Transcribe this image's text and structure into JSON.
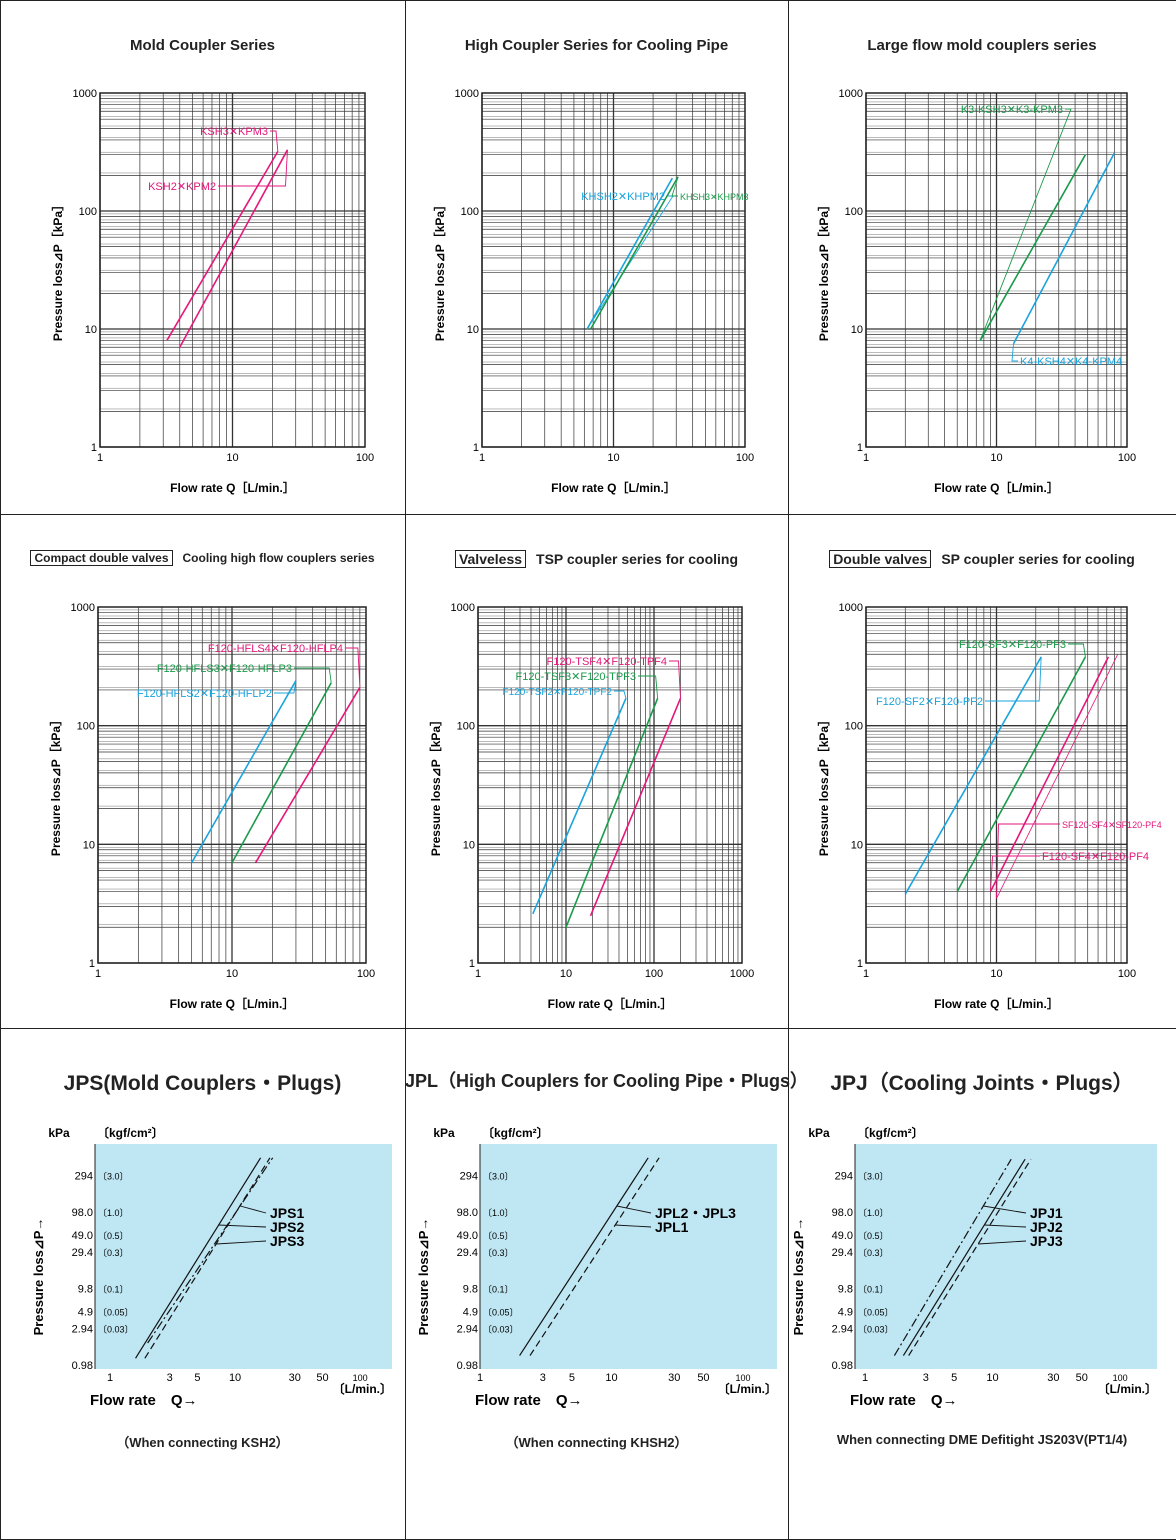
{
  "colors": {
    "pink": "#e5177b",
    "cyan": "#1aa3dd",
    "green": "#1a9a4a",
    "lightblue": "#bfe6f3"
  },
  "chart_data": [
    {
      "type": "line",
      "scale": "log-log",
      "title": "Mold Coupler Series",
      "xlabel": "Flow rate Q［L/min.］",
      "ylabel": "Pressure loss⊿P［kPa］",
      "xlim": [
        1,
        100
      ],
      "ylim": [
        1,
        1000
      ],
      "xticks": [
        "1",
        "10",
        "100"
      ],
      "yticks": [
        "1",
        "10",
        "100",
        "1000"
      ],
      "series": [
        {
          "name": "KSH3✕KPM3",
          "color": "pink",
          "points": [
            [
              3.2,
              8
            ],
            [
              22,
              320
            ]
          ]
        },
        {
          "name": "KSH2✕KPM2",
          "color": "pink",
          "points": [
            [
              4,
              7
            ],
            [
              26,
              330
            ]
          ]
        }
      ]
    },
    {
      "type": "line",
      "scale": "log-log",
      "title": "High Coupler Series for Cooling Pipe",
      "xlabel": "Flow rate Q［L/min.］",
      "ylabel": "Pressure loss⊿P［kPa］",
      "xlim": [
        1,
        100
      ],
      "ylim": [
        1,
        1000
      ],
      "xticks": [
        "1",
        "10",
        "100"
      ],
      "yticks": [
        "1",
        "10",
        "100",
        "1000"
      ],
      "series": [
        {
          "name": "KHSH2✕KHPM2",
          "color": "cyan",
          "points": [
            [
              6.3,
              10
            ],
            [
              28,
              190
            ]
          ]
        },
        {
          "name": "KHSH3✕KHPM3",
          "color": "green",
          "points": [
            [
              6.7,
              10
            ],
            [
              31,
              195
            ]
          ]
        }
      ]
    },
    {
      "type": "line",
      "scale": "log-log",
      "title": "Large flow mold couplers series",
      "xlabel": "Flow rate Q［L/min.］",
      "ylabel": "Pressure loss⊿P［kPa］",
      "xlim": [
        1,
        100
      ],
      "ylim": [
        1,
        1000
      ],
      "xticks": [
        "1",
        "10",
        "100"
      ],
      "yticks": [
        "1",
        "10",
        "100",
        "1000"
      ],
      "series": [
        {
          "name": "K3-KSH3✕K3-KPM3",
          "color": "green",
          "points": [
            [
              7.5,
              8
            ],
            [
              48,
              300
            ]
          ]
        },
        {
          "name": "K4-KSH4✕K4-KPM4",
          "color": "cyan",
          "points": [
            [
              13.5,
              7.5
            ],
            [
              80,
              310
            ]
          ]
        }
      ]
    },
    {
      "type": "line",
      "scale": "log-log",
      "badge": "Compact double valves",
      "title": "Cooling high flow couplers series",
      "xlabel": "Flow rate Q［L/min.］",
      "ylabel": "Pressure loss⊿P［kPa］",
      "xlim": [
        1,
        100
      ],
      "ylim": [
        1,
        1000
      ],
      "xticks": [
        "1",
        "10",
        "100"
      ],
      "yticks": [
        "1",
        "10",
        "100",
        "1000"
      ],
      "series": [
        {
          "name": "F120-HFLS4✕F120-HFLP4",
          "color": "pink",
          "points": [
            [
              15,
              7
            ],
            [
              90,
              210
            ]
          ]
        },
        {
          "name": "F120-HFLS3✕F120-HFLP3",
          "color": "green",
          "points": [
            [
              10,
              7
            ],
            [
              55,
              230
            ]
          ]
        },
        {
          "name": "F120-HFLS2✕F120-HFLP2",
          "color": "cyan",
          "points": [
            [
              5,
              7
            ],
            [
              30,
              240
            ]
          ]
        }
      ]
    },
    {
      "type": "line",
      "scale": "log-log",
      "badge": "Valveless",
      "title": "TSP coupler series for cooling",
      "xlabel": "Flow rate Q［L/min.］",
      "ylabel": "Pressure loss⊿P［kPa］",
      "xlim": [
        1,
        1000
      ],
      "ylim": [
        1,
        1000
      ],
      "xticks": [
        "1",
        "10",
        "100",
        "1000"
      ],
      "yticks": [
        "1",
        "10",
        "100",
        "1000"
      ],
      "series": [
        {
          "name": "F120-TSF4✕F120-TPF4",
          "color": "pink",
          "points": [
            [
              19,
              2.5
            ],
            [
              200,
              170
            ]
          ]
        },
        {
          "name": "F120-TSF3✕F120-TPF3",
          "color": "green",
          "points": [
            [
              10,
              2
            ],
            [
              110,
              170
            ]
          ]
        },
        {
          "name": "F120-TSF2✕F120-TPF2",
          "color": "cyan",
          "points": [
            [
              4.2,
              2.6
            ],
            [
              48,
              170
            ]
          ]
        }
      ]
    },
    {
      "type": "line",
      "scale": "log-log",
      "badge": "Double valves",
      "title": "SP coupler series for cooling",
      "xlabel": "Flow rate Q［L/min.］",
      "ylabel": "Pressure loss⊿P［kPa］",
      "xlim": [
        1,
        100
      ],
      "ylim": [
        1,
        1000
      ],
      "xticks": [
        "1",
        "10",
        "100"
      ],
      "yticks": [
        "1",
        "10",
        "100",
        "1000"
      ],
      "series": [
        {
          "name": "F120-SF3✕F120-PF3",
          "color": "green",
          "points": [
            [
              5,
              4
            ],
            [
              48,
              380
            ]
          ]
        },
        {
          "name": "F120-SF2✕F120-PF2",
          "color": "cyan",
          "points": [
            [
              2,
              3.8
            ],
            [
              22,
              380
            ]
          ]
        },
        {
          "name": "SF120-SF4✕SF120-PF4",
          "color": "pink",
          "thin": true,
          "points": [
            [
              10,
              3.5
            ],
            [
              85,
              400
            ]
          ]
        },
        {
          "name": "F120-SF4✕F120-PF4",
          "color": "pink",
          "points": [
            [
              9,
              4
            ],
            [
              72,
              380
            ]
          ]
        }
      ]
    },
    {
      "type": "line",
      "scale": "log-log",
      "title": "JPS(Mold Couplers・Plugs)",
      "note": "（When connecting KSH2）",
      "unit_kpa": "kPa",
      "unit_kgf": "〔kgf/cm²〕",
      "xlabel": "Flow rate　Q→",
      "xunit": "〔L/min.〕",
      "ylabel": "Pressure loss⊿P→",
      "xlim": [
        1,
        150
      ],
      "ylim": [
        0.98,
        700
      ],
      "xticks": [
        "1",
        "3",
        "5",
        "10",
        "30",
        "50",
        "100"
      ],
      "yticks": [
        "0.98",
        "2.94",
        "4.9",
        "9.8",
        "29.4",
        "49.0",
        "98.0",
        "294"
      ],
      "kgf_ticks": [
        "〔0.03〕",
        "〔0.05〕",
        "〔0.1〕",
        "〔0.3〕",
        "〔0.5〕",
        "〔1.0〕",
        "〔3.0〕"
      ],
      "series": [
        {
          "name": "JPS1",
          "style": "dashdot",
          "points": [
            [
              2,
              1.9
            ],
            [
              20,
              500
            ]
          ]
        },
        {
          "name": "JPS2",
          "style": "solid",
          "points": [
            [
              1.6,
              1.2
            ],
            [
              16,
              500
            ]
          ]
        },
        {
          "name": "JPS3",
          "style": "dashed",
          "points": [
            [
              1.9,
              1.2
            ],
            [
              19,
              500
            ]
          ]
        }
      ]
    },
    {
      "type": "line",
      "scale": "log-log",
      "title": "JPL（High Couplers for Cooling Pipe・Plugs）",
      "note": "（When connecting KHSH2）",
      "unit_kpa": "kPa",
      "unit_kgf": "〔kgf/cm²〕",
      "xlabel": "Flow rate　Q→",
      "xunit": "〔L/min.〕",
      "ylabel": "Pressure loss⊿P→",
      "xlim": [
        1,
        150
      ],
      "ylim": [
        0.98,
        700
      ],
      "xticks": [
        "1",
        "3",
        "5",
        "10",
        "30",
        "50",
        "100"
      ],
      "yticks": [
        "0.98",
        "2.94",
        "4.9",
        "9.8",
        "29.4",
        "49.0",
        "98.0",
        "294"
      ],
      "kgf_ticks": [
        "〔0.03〕",
        "〔0.05〕",
        "〔0.1〕",
        "〔0.3〕",
        "〔0.5〕",
        "〔1.0〕",
        "〔3.0〕"
      ],
      "series": [
        {
          "name": "JPL2・JPL3",
          "style": "solid",
          "points": [
            [
              2,
              1.3
            ],
            [
              19,
              500
            ]
          ]
        },
        {
          "name": "JPL1",
          "style": "dashed",
          "points": [
            [
              2.4,
              1.3
            ],
            [
              23,
              500
            ]
          ]
        }
      ]
    },
    {
      "type": "line",
      "scale": "log-log",
      "title": "JPJ（Cooling Joints・Plugs）",
      "note": "When connecting DME Defitight JS203V(PT1/4)",
      "unit_kpa": "kPa",
      "unit_kgf": "〔kgf/cm²〕",
      "xlabel": "Flow rate　Q→",
      "xunit": "〔L/min.〕",
      "ylabel": "Pressure loss⊿P→",
      "xlim": [
        1,
        150
      ],
      "ylim": [
        0.98,
        700
      ],
      "xticks": [
        "1",
        "3",
        "5",
        "10",
        "30",
        "50",
        "100"
      ],
      "yticks": [
        "0.98",
        "2.94",
        "4.9",
        "9.8",
        "29.4",
        "49.0",
        "98.0",
        "294"
      ],
      "kgf_ticks": [
        "〔0.03〕",
        "〔0.05〕",
        "〔0.1〕",
        "〔0.3〕",
        "〔0.5〕",
        "〔1.0〕",
        "〔3.0〕"
      ],
      "series": [
        {
          "name": "JPJ1",
          "style": "dashdot",
          "points": [
            [
              1.7,
              1.3
            ],
            [
              14,
              480
            ]
          ]
        },
        {
          "name": "JPJ2",
          "style": "solid",
          "points": [
            [
              2,
              1.3
            ],
            [
              18,
              480
            ]
          ]
        },
        {
          "name": "JPJ3",
          "style": "dashed",
          "points": [
            [
              2.2,
              1.3
            ],
            [
              20,
              480
            ]
          ]
        }
      ]
    }
  ]
}
